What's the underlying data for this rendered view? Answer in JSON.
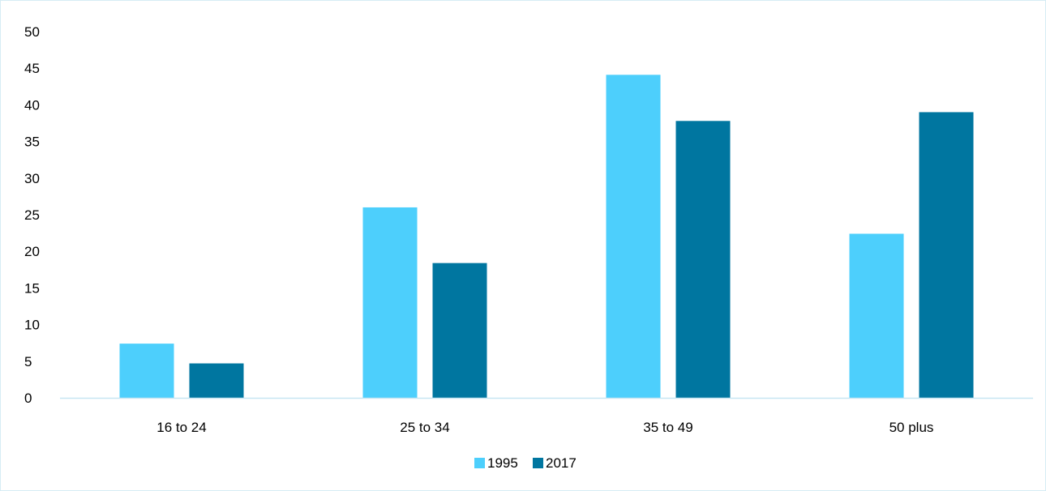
{
  "chart_data": {
    "type": "bar",
    "categories": [
      "16 to 24",
      "25 to 34",
      "35 to 49",
      "50 plus"
    ],
    "series": [
      {
        "name": "1995",
        "values": [
          7.4,
          26.0,
          44.1,
          22.4
        ],
        "color": "#4dcffc"
      },
      {
        "name": "2017",
        "values": [
          4.7,
          18.4,
          37.8,
          39.0
        ],
        "color": "#0076a0"
      }
    ],
    "title": "",
    "xlabel": "",
    "ylabel": "",
    "ylim": [
      0,
      50
    ],
    "yticks": [
      "0",
      "5",
      "10",
      "15",
      "20",
      "25",
      "30",
      "35",
      "40",
      "45",
      "50"
    ],
    "grid": false,
    "legend": "bottom-center",
    "axis_color": "#c7e6f2"
  }
}
